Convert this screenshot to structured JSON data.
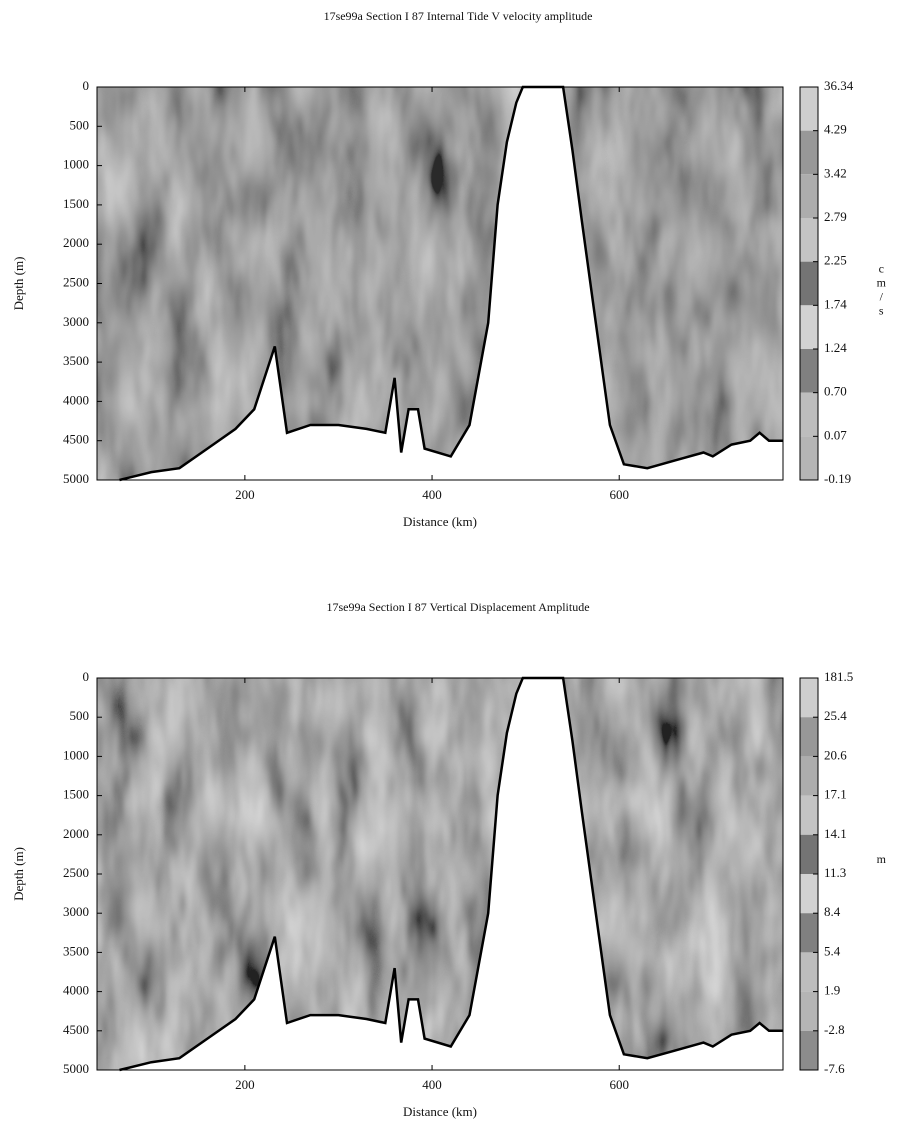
{
  "chart_data": [
    {
      "type": "contour",
      "title": "17se99a Section I 87 Internal Tide V velocity amplitude",
      "xlabel": "Distance (km)",
      "ylabel": "Depth (m)",
      "xlim": [
        42,
        775
      ],
      "xticks": [
        200,
        400,
        600
      ],
      "ylim": [
        0,
        5000
      ],
      "y_inverted": true,
      "yticks": [
        0,
        500,
        1000,
        1500,
        2000,
        2500,
        3000,
        3500,
        4000,
        4500,
        5000
      ],
      "colorbar": {
        "label": "cm/s",
        "ticks": [
          36.34,
          4.29,
          3.42,
          2.79,
          2.25,
          1.74,
          1.24,
          {
            "value": 0.7,
            "label": "0.70"
          },
          0.07,
          -0.19
        ]
      },
      "x": [
        66,
        100,
        130,
        160,
        190,
        210,
        232,
        245,
        270,
        300,
        330,
        350,
        360,
        367,
        375,
        385,
        392,
        420,
        440,
        460,
        470,
        480,
        490,
        497,
        540,
        550,
        560,
        575,
        590,
        605,
        630,
        660,
        690,
        700,
        720,
        740,
        750,
        760,
        775
      ],
      "values": [
        5000,
        4900,
        4850,
        4600,
        4350,
        4100,
        3300,
        4400,
        4300,
        4300,
        4350,
        4400,
        3700,
        4650,
        4100,
        4100,
        4600,
        4700,
        4300,
        3000,
        1500,
        700,
        200,
        0,
        0,
        800,
        1700,
        3000,
        4300,
        4800,
        4850,
        4750,
        4650,
        4700,
        4550,
        4500,
        4400,
        4500,
        4500
      ]
    },
    {
      "type": "contour",
      "title": "17se99a Section I 87 Vertical Displacement Amplitude",
      "xlabel": "Distance (km)",
      "ylabel": "Depth (m)",
      "xlim": [
        42,
        775
      ],
      "xticks": [
        200,
        400,
        600
      ],
      "ylim": [
        0,
        5000
      ],
      "y_inverted": true,
      "yticks": [
        0,
        500,
        1000,
        1500,
        2000,
        2500,
        3000,
        3500,
        4000,
        4500,
        5000
      ],
      "colorbar": {
        "label": "m",
        "ticks": [
          181.5,
          25.4,
          20.6,
          17.1,
          14.1,
          11.3,
          8.4,
          5.4,
          1.9,
          -2.8,
          -7.6
        ]
      },
      "x": [
        66,
        100,
        130,
        160,
        190,
        210,
        232,
        245,
        270,
        300,
        330,
        350,
        360,
        367,
        375,
        385,
        392,
        420,
        440,
        460,
        470,
        480,
        490,
        497,
        540,
        550,
        560,
        575,
        590,
        605,
        630,
        660,
        690,
        700,
        720,
        740,
        750,
        760,
        775
      ],
      "values": [
        5000,
        4900,
        4850,
        4600,
        4350,
        4100,
        3300,
        4400,
        4300,
        4300,
        4350,
        4400,
        3700,
        4650,
        4100,
        4100,
        4600,
        4700,
        4300,
        3000,
        1500,
        700,
        200,
        0,
        0,
        800,
        1700,
        3000,
        4300,
        4800,
        4850,
        4750,
        4650,
        4700,
        4550,
        4500,
        4400,
        4500,
        4500
      ]
    }
  ]
}
